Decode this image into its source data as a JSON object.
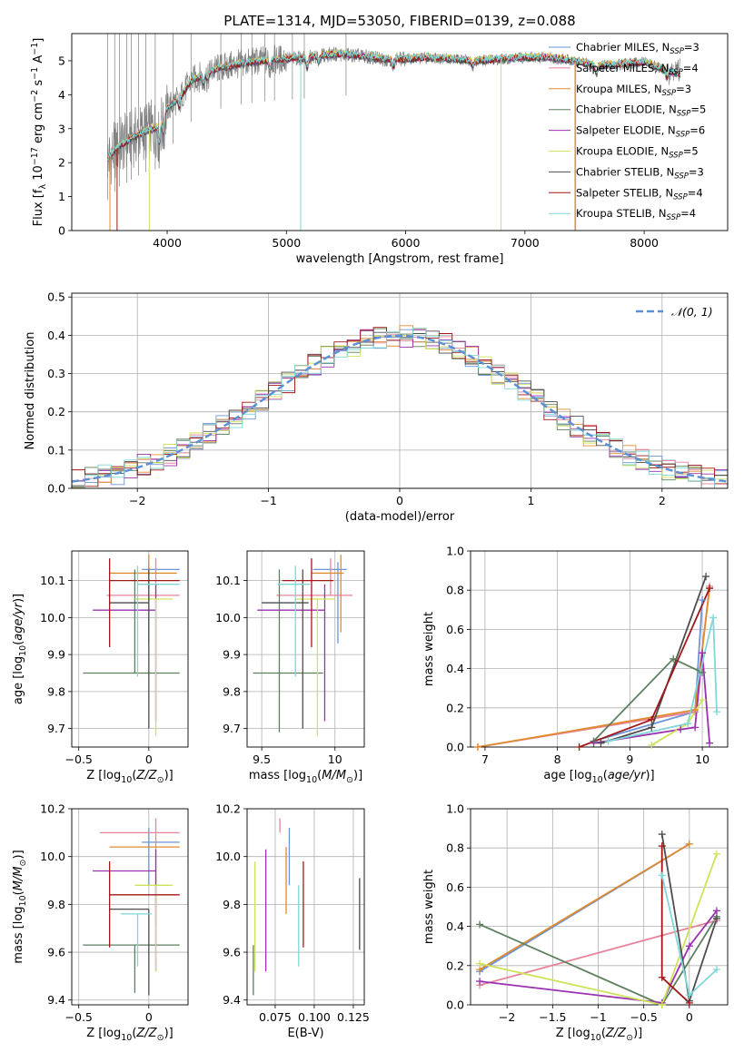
{
  "figure_title": "PLATE=1314, MJD=53050, FIBERID=0139, z=0.088",
  "colors": {
    "chabrier_miles": "#6a95d6",
    "salpeter_miles": "#e8839a",
    "kroupa_miles": "#e08a2e",
    "chabrier_elodie": "#5e7f5e",
    "salpeter_elodie": "#9b30b0",
    "kroupa_elodie": "#cfe25a",
    "chabrier_stelib": "#4d4d4d",
    "salpeter_stelib": "#a01818",
    "kroupa_stelib": "#7fd7d7",
    "data": "#7f7f7f",
    "gaussian": "#5b8fd6"
  },
  "chart_data": [
    {
      "id": "spectrum",
      "type": "line",
      "title": "PLATE=1314, MJD=53050, FIBERID=0139, z=0.088",
      "xlabel": "wavelength [Angstrom, rest frame]",
      "ylabel": "Flux [f_λ 10^-17 erg cm^-2 s^-1 A^-1]",
      "xlim": [
        3200,
        8700
      ],
      "ylim": [
        0,
        5.8
      ],
      "xticks": [
        4000,
        5000,
        6000,
        7000,
        8000
      ],
      "yticks": [
        0,
        1,
        2,
        3,
        4,
        5
      ],
      "grid": false,
      "legend_position": "right",
      "continuum": {
        "x": [
          3500,
          3600,
          3700,
          3800,
          3900,
          4000,
          4100,
          4200,
          4400,
          4600,
          4800,
          5000,
          5200,
          5400,
          5600,
          5800,
          6000,
          6200,
          6400,
          6600,
          6800,
          7000,
          7200,
          7400,
          7600,
          7800,
          8000,
          8200,
          8300
        ],
        "y": [
          2.1,
          2.5,
          2.7,
          2.9,
          3.0,
          3.6,
          3.9,
          4.4,
          4.75,
          4.9,
          5.0,
          5.05,
          5.1,
          5.2,
          5.15,
          5.05,
          5.05,
          5.1,
          5.05,
          5.0,
          5.05,
          5.1,
          5.1,
          5.0,
          4.85,
          4.9,
          4.95,
          4.7,
          4.6
        ]
      },
      "legend": [
        {
          "key": "chabrier_miles",
          "label": "Chabrier MILES, ",
          "nssp": "3"
        },
        {
          "key": "salpeter_miles",
          "label": "Salpeter MILES, ",
          "nssp": "4"
        },
        {
          "key": "kroupa_miles",
          "label": "Kroupa MILES, ",
          "nssp": "3"
        },
        {
          "key": "chabrier_elodie",
          "label": "Chabrier ELODIE, ",
          "nssp": "5"
        },
        {
          "key": "salpeter_elodie",
          "label": "Salpeter ELODIE, ",
          "nssp": "6"
        },
        {
          "key": "kroupa_elodie",
          "label": "Kroupa ELODIE, ",
          "nssp": "5"
        },
        {
          "key": "chabrier_stelib",
          "label": "Chabrier STELIB, ",
          "nssp": "3"
        },
        {
          "key": "salpeter_stelib",
          "label": "Salpeter STELIB, ",
          "nssp": "4"
        },
        {
          "key": "kroupa_stelib",
          "label": "Kroupa STELIB, ",
          "nssp": "4"
        }
      ]
    },
    {
      "id": "residuals",
      "type": "histogram",
      "xlabel": "(data-model)/error",
      "ylabel": "Normed distribution",
      "xlim": [
        -2.5,
        2.5
      ],
      "ylim": [
        0,
        0.51
      ],
      "xticks": [
        -2,
        -1,
        0,
        1,
        2
      ],
      "yticks": [
        0.0,
        0.1,
        0.2,
        0.3,
        0.4,
        0.5
      ],
      "grid": true,
      "legend_position": "top-right",
      "legend_label": "𝒩(0, 1)",
      "bin_width": 0.1
    },
    {
      "id": "age_vs_Z",
      "type": "errorbar",
      "xlabel": "Z [log10(Z/Z⊙)]",
      "ylabel": "age  [log10(age/yr)]",
      "xlim": [
        -0.55,
        0.28
      ],
      "ylim": [
        9.65,
        10.18
      ],
      "xticks": [
        -0.5,
        0.0
      ],
      "yticks": [
        9.7,
        9.8,
        9.9,
        10.0,
        10.1
      ],
      "grid": true,
      "points": [
        {
          "c": "chabrier_miles",
          "x": 0.0,
          "xerr": [
            0.05,
            0.22
          ],
          "y": 10.13,
          "yerr": [
            0.2,
            0.02
          ]
        },
        {
          "c": "salpeter_miles",
          "x": 0.05,
          "xerr": [
            0.35,
            0.17
          ],
          "y": 10.06,
          "yerr": [
            0.0,
            0.1
          ]
        },
        {
          "c": "kroupa_miles",
          "x": 0.0,
          "xerr": [
            0.28,
            0.2
          ],
          "y": 10.12,
          "yerr": [
            0.0,
            0.05
          ]
        },
        {
          "c": "chabrier_elodie",
          "x": -0.1,
          "xerr": [
            0.37,
            0.32
          ],
          "y": 9.85,
          "yerr": [
            0.0,
            0.28
          ]
        },
        {
          "c": "salpeter_elodie",
          "x": 0.05,
          "xerr": [
            0.45,
            0.0
          ],
          "y": 10.02,
          "yerr": [
            0.3,
            0.07
          ]
        },
        {
          "c": "kroupa_elodie",
          "x": 0.05,
          "xerr": [
            0.15,
            0.12
          ],
          "y": 10.05,
          "yerr": [
            0.37,
            0.0
          ]
        },
        {
          "c": "chabrier_stelib",
          "x": 0.0,
          "xerr": [
            0.28,
            0.0
          ],
          "y": 10.04,
          "yerr": [
            0.34,
            0.09
          ]
        },
        {
          "c": "salpeter_stelib",
          "x": -0.28,
          "xerr": [
            0.0,
            0.5
          ],
          "y": 10.1,
          "yerr": [
            0.18,
            0.06
          ]
        },
        {
          "c": "kroupa_stelib",
          "x": -0.08,
          "xerr": [
            0.0,
            0.3
          ],
          "y": 10.09,
          "yerr": [
            0.25,
            0.05
          ]
        }
      ]
    },
    {
      "id": "age_vs_mass",
      "type": "errorbar",
      "xlabel": "mass [log10(M/M⊙)]",
      "ylabel": "",
      "xlim": [
        9.4,
        10.2
      ],
      "ylim": [
        9.65,
        10.18
      ],
      "xticks": [
        9.5,
        10.0
      ],
      "yticks": [
        9.7,
        9.8,
        9.9,
        10.0,
        10.1
      ],
      "grid": true,
      "points": [
        {
          "c": "chabrier_miles",
          "x": 10.02,
          "xerr": [
            0.17,
            0.06
          ],
          "y": 10.13,
          "yerr": [
            0.2,
            0.02
          ]
        },
        {
          "c": "salpeter_miles",
          "x": 9.97,
          "xerr": [
            0.37,
            0.15
          ],
          "y": 10.06,
          "yerr": [
            0.0,
            0.1
          ]
        },
        {
          "c": "kroupa_miles",
          "x": 10.04,
          "xerr": [
            0.2,
            0.02
          ],
          "y": 10.12,
          "yerr": [
            0.16,
            0.05
          ]
        },
        {
          "c": "chabrier_elodie",
          "x": 9.62,
          "xerr": [
            0.18,
            0.3
          ],
          "y": 9.85,
          "yerr": [
            0.16,
            0.28
          ]
        },
        {
          "c": "salpeter_elodie",
          "x": 9.93,
          "xerr": [
            0.46,
            0.0
          ],
          "y": 10.02,
          "yerr": [
            0.3,
            0.07
          ]
        },
        {
          "c": "kroupa_elodie",
          "x": 9.88,
          "xerr": [
            0.15,
            0.12
          ],
          "y": 10.05,
          "yerr": [
            0.37,
            0.0
          ]
        },
        {
          "c": "chabrier_stelib",
          "x": 9.78,
          "xerr": [
            0.28,
            0.04
          ],
          "y": 10.04,
          "yerr": [
            0.34,
            0.09
          ]
        },
        {
          "c": "salpeter_stelib",
          "x": 9.84,
          "xerr": [
            0.2,
            0.15
          ],
          "y": 10.1,
          "yerr": [
            0.18,
            0.06
          ]
        },
        {
          "c": "kroupa_stelib",
          "x": 9.73,
          "xerr": [
            0.12,
            0.1
          ],
          "y": 10.09,
          "yerr": [
            0.25,
            0.05
          ]
        }
      ]
    },
    {
      "id": "massweight_vs_age",
      "type": "line",
      "xlabel": "age  [log10(age/yr)]",
      "ylabel": "mass weight",
      "xlim": [
        6.8,
        10.35
      ],
      "ylim": [
        0,
        1.0
      ],
      "xticks": [
        7,
        8,
        9,
        10
      ],
      "yticks": [
        0.0,
        0.2,
        0.4,
        0.6,
        0.8,
        1.0
      ],
      "grid": true,
      "series": [
        {
          "c": "chabrier_miles",
          "x": [
            8.5,
            9.9,
            10.0
          ],
          "y": [
            0.03,
            0.18,
            0.75
          ]
        },
        {
          "c": "salpeter_miles",
          "x": [
            6.9,
            9.9,
            10.1
          ],
          "y": [
            0.0,
            0.18,
            0.82
          ]
        },
        {
          "c": "kroupa_miles",
          "x": [
            6.9,
            9.9,
            10.1
          ],
          "y": [
            0.0,
            0.19,
            0.81
          ]
        },
        {
          "c": "chabrier_elodie",
          "x": [
            8.5,
            9.6,
            10.0
          ],
          "y": [
            0.03,
            0.45,
            0.38
          ]
        },
        {
          "c": "salpeter_elodie",
          "x": [
            8.5,
            9.7,
            9.9,
            10.0,
            10.1
          ],
          "y": [
            0.02,
            0.09,
            0.1,
            0.48,
            0.02
          ]
        },
        {
          "c": "kroupa_elodie",
          "x": [
            9.3,
            9.8,
            10.0
          ],
          "y": [
            0.01,
            0.12,
            0.24
          ]
        },
        {
          "c": "chabrier_stelib",
          "x": [
            8.6,
            9.3,
            10.05
          ],
          "y": [
            0.02,
            0.1,
            0.87
          ]
        },
        {
          "c": "salpeter_stelib",
          "x": [
            8.3,
            9.3,
            10.1
          ],
          "y": [
            0.0,
            0.14,
            0.81
          ]
        },
        {
          "c": "kroupa_stelib",
          "x": [
            8.7,
            9.8,
            10.15,
            10.2
          ],
          "y": [
            0.03,
            0.12,
            0.66,
            0.18
          ]
        }
      ]
    },
    {
      "id": "mass_vs_Z",
      "type": "errorbar",
      "xlabel": "Z [log10(Z/Z⊙)]",
      "ylabel": "mass [log10(M/M⊙)]",
      "xlim": [
        -0.55,
        0.28
      ],
      "ylim": [
        9.38,
        10.2
      ],
      "xticks": [
        -0.5,
        0.0
      ],
      "yticks": [
        9.4,
        9.6,
        9.8,
        10.0,
        10.2
      ],
      "grid": true,
      "points": [
        {
          "c": "chabrier_miles",
          "x": 0.0,
          "xerr": [
            0.05,
            0.22
          ],
          "y": 10.06,
          "yerr": [
            0.18,
            0.06
          ]
        },
        {
          "c": "salpeter_miles",
          "x": 0.05,
          "xerr": [
            0.4,
            0.17
          ],
          "y": 10.1,
          "yerr": [
            0.38,
            0.06
          ]
        },
        {
          "c": "kroupa_miles",
          "x": 0.0,
          "xerr": [
            0.28,
            0.22
          ],
          "y": 10.04,
          "yerr": [
            0.0,
            0.0
          ]
        },
        {
          "c": "chabrier_elodie",
          "x": -0.1,
          "xerr": [
            0.37,
            0.32
          ],
          "y": 9.63,
          "yerr": [
            0.2,
            0.0
          ]
        },
        {
          "c": "salpeter_elodie",
          "x": 0.05,
          "xerr": [
            0.45,
            0.0
          ],
          "y": 9.94,
          "yerr": [
            0.42,
            0.09
          ]
        },
        {
          "c": "kroupa_elodie",
          "x": 0.05,
          "xerr": [
            0.15,
            0.12
          ],
          "y": 9.88,
          "yerr": [
            0.36,
            0.0
          ]
        },
        {
          "c": "chabrier_stelib",
          "x": 0.0,
          "xerr": [
            0.28,
            0.0
          ],
          "y": 9.78,
          "yerr": [
            0.36,
            0.0
          ]
        },
        {
          "c": "salpeter_stelib",
          "x": -0.28,
          "xerr": [
            0.0,
            0.5
          ],
          "y": 9.84,
          "yerr": [
            0.22,
            0.14
          ]
        },
        {
          "c": "kroupa_stelib",
          "x": -0.08,
          "xerr": [
            0.12,
            0.1
          ],
          "y": 9.76,
          "yerr": [
            0.22,
            0.0
          ]
        }
      ]
    },
    {
      "id": "mass_vs_ebv",
      "type": "errorbar",
      "xlabel": "E(B-V)",
      "ylabel": "",
      "xlim": [
        0.057,
        0.132
      ],
      "ylim": [
        9.38,
        10.2
      ],
      "xticks": [
        0.075,
        0.1,
        0.125
      ],
      "xticklabels": [
        "0.075",
        "0.100",
        "0.125"
      ],
      "yticks": [
        9.4,
        9.6,
        9.8,
        10.0,
        10.2
      ],
      "grid": true,
      "points": [
        {
          "c": "chabrier_miles",
          "x": 0.084,
          "y": 10.06,
          "yerr": [
            0.18,
            0.06
          ]
        },
        {
          "c": "salpeter_miles",
          "x": 0.078,
          "y": 10.1,
          "yerr": [
            0.0,
            0.06
          ]
        },
        {
          "c": "kroupa_miles",
          "x": 0.082,
          "y": 10.04,
          "yerr": [
            0.28,
            0.0
          ]
        },
        {
          "c": "chabrier_elodie",
          "x": 0.061,
          "y": 9.63,
          "yerr": [
            0.21,
            0.0
          ]
        },
        {
          "c": "salpeter_elodie",
          "x": 0.069,
          "y": 9.94,
          "yerr": [
            0.42,
            0.09
          ]
        },
        {
          "c": "kroupa_elodie",
          "x": 0.062,
          "y": 9.88,
          "yerr": [
            0.36,
            0.1
          ]
        },
        {
          "c": "chabrier_stelib",
          "x": 0.129,
          "y": 9.78,
          "yerr": [
            0.17,
            0.13
          ]
        },
        {
          "c": "salpeter_stelib",
          "x": 0.093,
          "y": 9.84,
          "yerr": [
            0.22,
            0.14
          ]
        },
        {
          "c": "kroupa_stelib",
          "x": 0.09,
          "y": 9.76,
          "yerr": [
            0.22,
            0.12
          ]
        }
      ]
    },
    {
      "id": "massweight_vs_Z",
      "type": "line",
      "xlabel": "Z [log10(Z/Z⊙)]",
      "ylabel": "mass weight",
      "xlim": [
        -2.4,
        0.42
      ],
      "ylim": [
        0,
        1.0
      ],
      "xticks": [
        -2.0,
        -1.5,
        -1.0,
        -0.5,
        0.0
      ],
      "yticks": [
        0.0,
        0.2,
        0.4,
        0.6,
        0.8,
        1.0
      ],
      "grid": true,
      "series": [
        {
          "c": "chabrier_miles",
          "x": [
            -2.3,
            0.0
          ],
          "y": [
            0.17,
            0.82
          ]
        },
        {
          "c": "salpeter_miles",
          "x": [
            -2.3,
            0.3
          ],
          "y": [
            0.1,
            0.43
          ]
        },
        {
          "c": "kroupa_miles",
          "x": [
            -2.3,
            0.0
          ],
          "y": [
            0.18,
            0.82
          ]
        },
        {
          "c": "chabrier_elodie",
          "x": [
            -2.3,
            -0.3,
            0.3
          ],
          "y": [
            0.41,
            0.0,
            0.45
          ]
        },
        {
          "c": "salpeter_elodie",
          "x": [
            -2.3,
            -0.3,
            0.0,
            0.3
          ],
          "y": [
            0.12,
            0.01,
            0.3,
            0.48
          ]
        },
        {
          "c": "kroupa_elodie",
          "x": [
            -2.3,
            -0.3,
            0.3
          ],
          "y": [
            0.21,
            0.0,
            0.77
          ]
        },
        {
          "c": "chabrier_stelib",
          "x": [
            -0.3,
            0.0,
            0.3
          ],
          "y": [
            0.87,
            0.02,
            0.44
          ]
        },
        {
          "c": "salpeter_stelib",
          "x": [
            -0.3,
            -0.3,
            0.0
          ],
          "y": [
            0.81,
            0.14,
            0.01
          ]
        },
        {
          "c": "kroupa_stelib",
          "x": [
            -0.3,
            0.0,
            0.3
          ],
          "y": [
            0.66,
            0.05,
            0.18
          ]
        }
      ]
    }
  ]
}
